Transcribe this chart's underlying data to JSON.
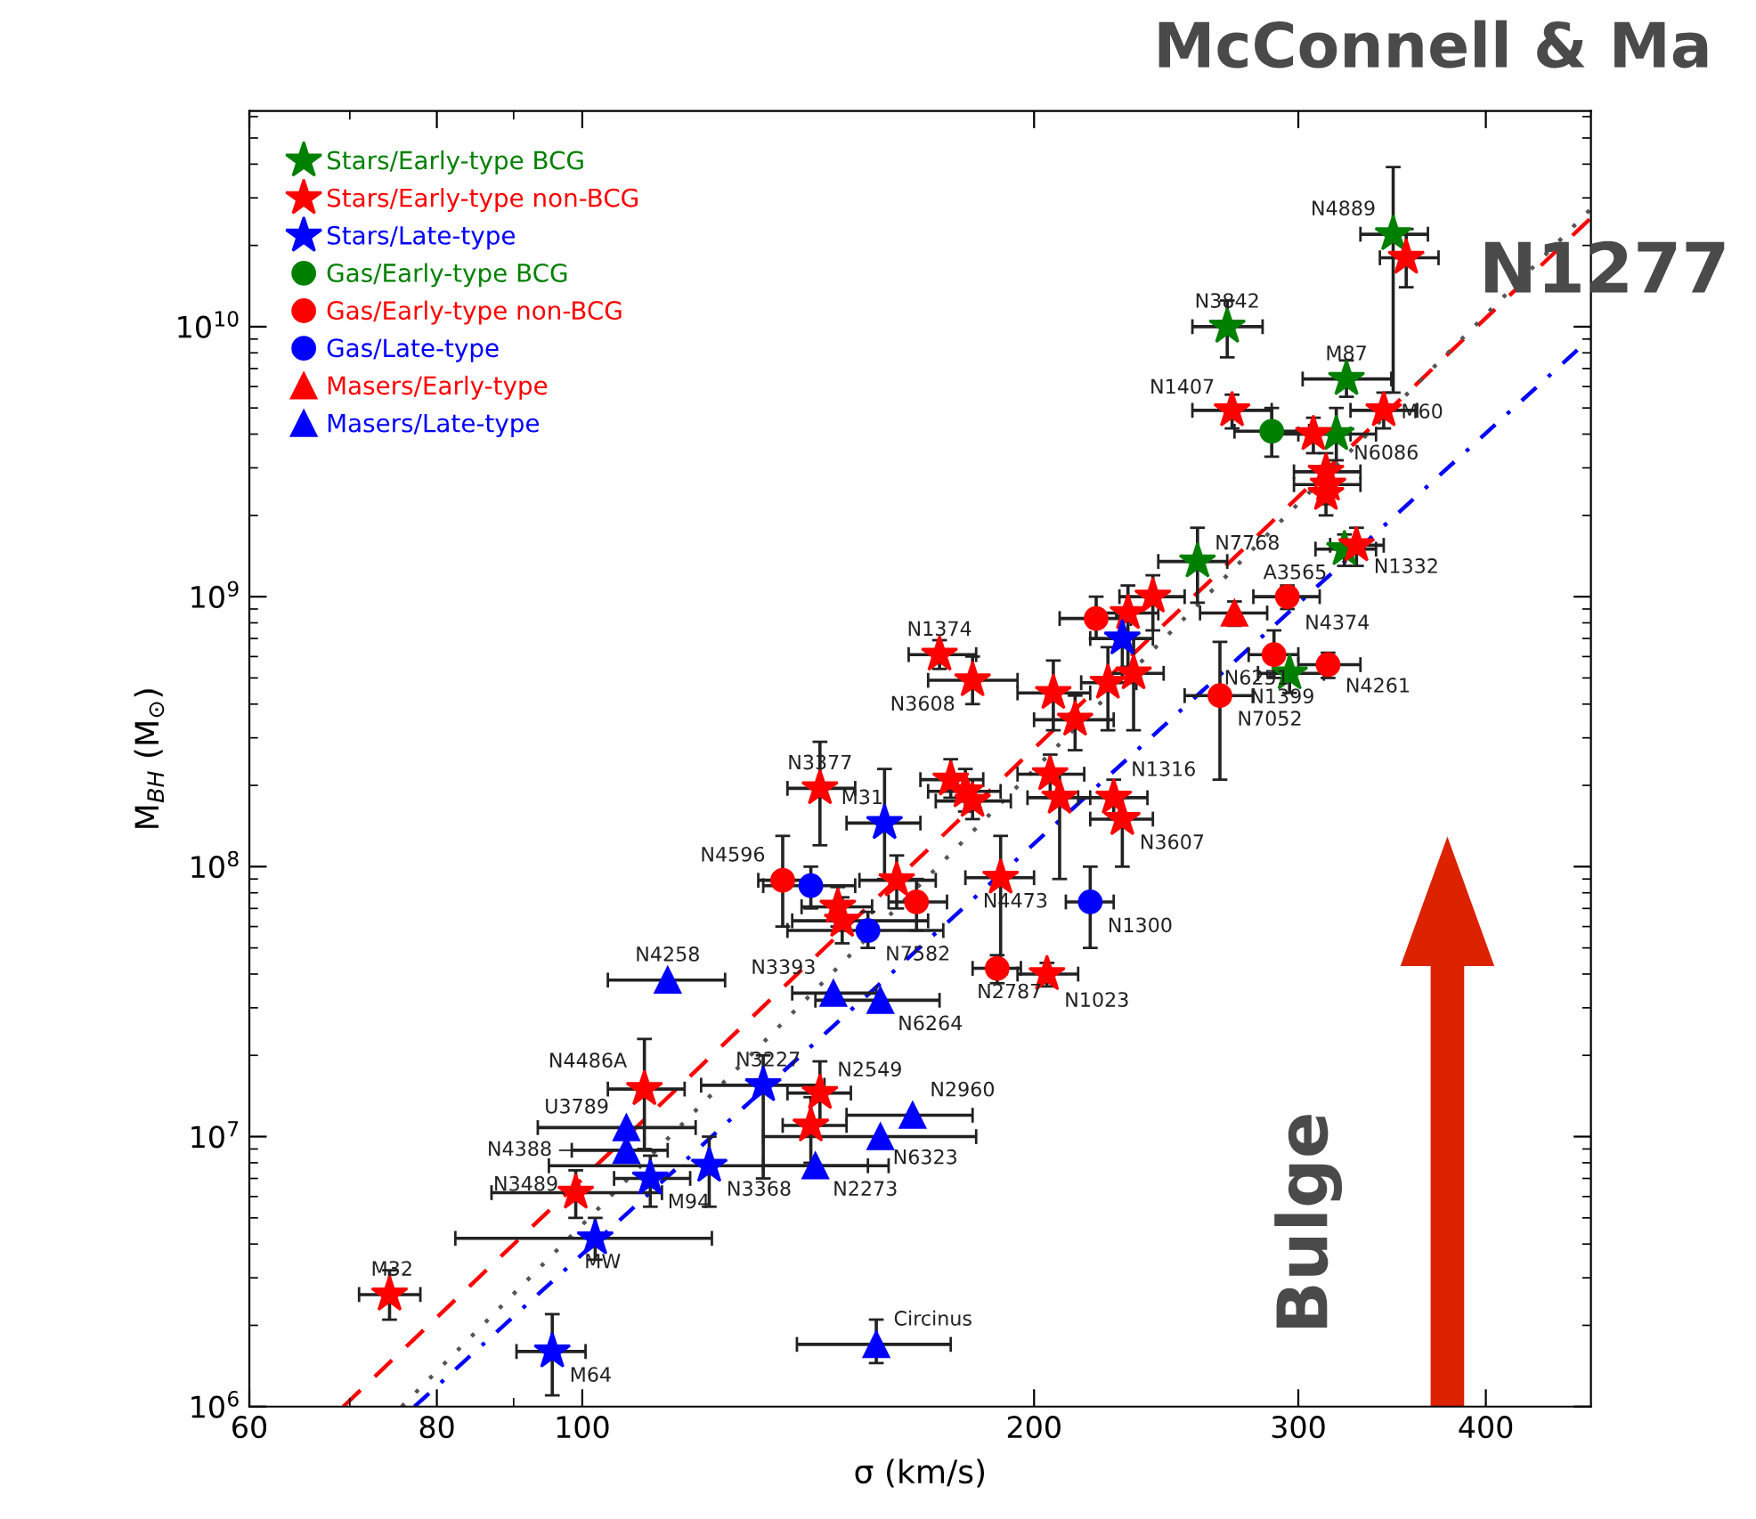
{
  "chart_data": {
    "type": "scatter",
    "title": "McConnell & Ma",
    "xlabel": "σ (km/s)",
    "ylabel": "M$_{BH}$ (M$_{⊙}$)",
    "log": "xy",
    "xlim": [
      60,
      470
    ],
    "ylim": [
      1000000.0,
      63000000000.0
    ],
    "grid": false,
    "legend": "top left",
    "xticks": [
      60,
      80,
      100,
      200,
      300,
      400
    ],
    "yticks": [
      {
        "value": 1000000.0,
        "label": "10$^{6}$"
      },
      {
        "value": 10000000.0,
        "label": "10$^{7}$"
      },
      {
        "value": 100000000.0,
        "label": "10$^{8}$"
      },
      {
        "value": 1000000000.0,
        "label": "10$^{9}$"
      },
      {
        "value": 10000000000.0,
        "label": "10$^{10}$"
      }
    ],
    "series": [
      {
        "name": "Stars/Early-type BCG",
        "color": "#008000",
        "marker": "star",
        "x": [
          347,
          269,
          323,
          318,
          257,
          322,
          296
        ],
        "values": [
          22000000000.0,
          10000000000.0,
          6400000000.0,
          4000000000.0,
          1350000000.0,
          1500000000.0,
          520000000.0
        ],
        "xerrors": [
          [
            330,
            366
          ],
          [
            255,
            284
          ],
          [
            302,
            346
          ],
          [
            300,
            338
          ],
          [
            242,
            269
          ],
          [
            308,
            338
          ],
          [
            282,
            312
          ]
        ],
        "errors": [
          [
            5700000000.0,
            39000000000.0
          ],
          [
            7700000000.0,
            12500000000.0
          ],
          [
            5500000000.0,
            7500000000.0
          ],
          [
            3200000000.0,
            5000000000.0
          ],
          [
            950000000.0,
            1800000000.0
          ],
          [
            1300000000.0,
            1700000000.0
          ],
          [
            440000000.0,
            610000000.0
          ]
        ]
      },
      {
        "name": "Stars/Early-type non-BCG",
        "color": "#ff0000",
        "marker": "star",
        "x": [
          354,
          271,
          342,
          307,
          313,
          314,
          313,
          328,
          231,
          240,
          173,
          182,
          206,
          213,
          224,
          233,
          144,
          176,
          180,
          182,
          205,
          208,
          226,
          229,
          162,
          190,
          148,
          149,
          204,
          110,
          144,
          142,
          99,
          74.4
        ],
        "values": [
          18000000000.0,
          4900000000.0,
          4900000000.0,
          4000000000.0,
          2900000000.0,
          2600000000.0,
          2400000000.0,
          1550000000.0,
          870000000.0,
          1000000000.0,
          610000000.0,
          490000000.0,
          440000000.0,
          350000000.0,
          480000000.0,
          520000000.0,
          195000000.0,
          210000000.0,
          190000000.0,
          175000000.0,
          220000000.0,
          180000000.0,
          180000000.0,
          150000000.0,
          89000000.0,
          91000000.0,
          71000000.0,
          63000000.0,
          40000000.0,
          15000000.0,
          14500000.0,
          11000000.0,
          6200000.0,
          2600000.0
        ],
        "xerrors": [
          [
            340,
            372
          ],
          [
            255,
            288
          ],
          [
            325,
            360
          ],
          [
            290,
            325
          ],
          [
            298,
            330
          ],
          [
            298,
            330
          ],
          null,
          [
            315,
            342
          ],
          [
            220,
            242
          ],
          [
            228,
            252
          ],
          [
            165,
            183
          ],
          [
            170,
            195
          ],
          [
            195,
            218
          ],
          [
            200,
            226
          ],
          [
            215,
            234
          ],
          [
            224,
            244
          ],
          [
            137,
            152
          ],
          [
            168,
            185
          ],
          [
            170,
            190
          ],
          [
            172,
            193
          ],
          [
            195,
            216
          ],
          [
            198,
            218
          ],
          [
            214,
            238
          ],
          [
            218,
            240
          ],
          [
            153,
            172
          ],
          [
            180,
            200
          ],
          [
            140,
            156
          ],
          [
            138,
            170
          ],
          [
            195,
            214
          ],
          [
            104,
            117
          ],
          [
            137,
            151
          ],
          [
            136,
            150
          ],
          [
            87,
            113
          ],
          [
            71,
            78
          ]
        ],
        "errors": [
          [
            14000000000.0,
            23000000000.0
          ],
          [
            4200000000.0,
            5600000000.0
          ],
          [
            4200000000.0,
            5700000000.0
          ],
          [
            3400000000.0,
            4600000000.0
          ],
          [
            2900000000.0,
            3400000000.0
          ],
          [
            2200000000.0,
            3000000000.0
          ],
          [
            2000000000.0,
            2400000000.0
          ],
          [
            1300000000.0,
            1800000000.0
          ],
          [
            550000000.0,
            1100000000.0
          ],
          [
            750000000.0,
            1200000000.0
          ],
          [
            540000000.0,
            690000000.0
          ],
          [
            400000000.0,
            600000000.0
          ],
          [
            320000000.0,
            580000000.0
          ],
          [
            270000000.0,
            430000000.0
          ],
          [
            320000000.0,
            650000000.0
          ],
          [
            320000000.0,
            700000000.0
          ],
          [
            120000000.0,
            290000000.0
          ],
          [
            180000000.0,
            250000000.0
          ],
          [
            160000000.0,
            230000000.0
          ],
          [
            150000000.0,
            210000000.0
          ],
          [
            180000000.0,
            260000000.0
          ],
          [
            90000000.0,
            220000000.0
          ],
          [
            150000000.0,
            210000000.0
          ],
          [
            100000000.0,
            180000000.0
          ],
          [
            70000000.0,
            110000000.0
          ],
          [
            40000000.0,
            130000000.0
          ],
          [
            60000000.0,
            84000000.0
          ],
          [
            52000000.0,
            77000000.0
          ],
          [
            36000000.0,
            44000000.0
          ],
          [
            9000000.0,
            23000000.0
          ],
          [
            11000000.0,
            19000000.0
          ],
          [
            8000000.0,
            14000000.0
          ],
          [
            5000000.0,
            7500000.0
          ],
          [
            2100000.0,
            3200000.0
          ]
        ]
      },
      {
        "name": "Stars/Late-type",
        "color": "#0000ff",
        "marker": "star",
        "x": [
          229,
          159,
          132,
          121.5,
          111,
          102,
          95.5
        ],
        "values": [
          700000000.0,
          145000000.0,
          15500000.0,
          7800000.0,
          7000000.0,
          4200000.0,
          1600000.0
        ],
        "xerrors": [
          [
            218,
            240
          ],
          [
            150,
            168
          ],
          [
            120,
            145
          ],
          [
            95,
            160
          ],
          [
            105,
            118
          ],
          [
            82.3,
            122
          ],
          [
            90.4,
            100.5
          ]
        ],
        "errors": [
          [
            500000000.0,
            850000000.0
          ],
          [
            90000000.0,
            230000000.0
          ],
          [
            7000000.0,
            20000000.0
          ],
          [
            5500000.0,
            10000000.0
          ],
          [
            5500000.0,
            8500000.0
          ],
          [
            3500000.0,
            5000000.0
          ],
          [
            1100000.0,
            2200000.0
          ]
        ]
      },
      {
        "name": "Gas/Early-type BCG",
        "color": "#008000",
        "marker": "circle",
        "x": [
          288
        ],
        "values": [
          4100000000.0
        ],
        "xerrors": [
          [
            272,
            305
          ]
        ],
        "errors": [
          [
            3300000000.0,
            5000000000.0
          ]
        ]
      },
      {
        "name": "Gas/Early-type non-BCG",
        "color": "#ff0000",
        "marker": "circle",
        "x": [
          295,
          220,
          289,
          314,
          266,
          136,
          167,
          189
        ],
        "values": [
          1000000000.0,
          830000000.0,
          610000000.0,
          560000000.0,
          430000000.0,
          89000000.0,
          74000000.0,
          42000000.0
        ],
        "xerrors": [
          [
            280,
            310
          ],
          [
            208,
            232
          ],
          [
            278,
            300
          ],
          [
            300,
            330
          ],
          [
            252,
            280
          ],
          [
            131,
            142
          ],
          [
            160,
            175
          ],
          [
            182,
            196
          ]
        ],
        "errors": [
          [
            900000000.0,
            1100000000.0
          ],
          [
            700000000.0,
            1000000000.0
          ],
          [
            500000000.0,
            750000000.0
          ],
          [
            500000000.0,
            620000000.0
          ],
          [
            210000000.0,
            680000000.0
          ],
          [
            60000000.0,
            130000000.0
          ],
          [
            58000000.0,
            90000000.0
          ],
          [
            37000000.0,
            47000000.0
          ]
        ]
      },
      {
        "name": "Gas/Late-type",
        "color": "#0000ff",
        "marker": "circle",
        "x": [
          142,
          155,
          218
        ],
        "values": [
          85000000.0,
          58000000.0,
          74000000.0
        ],
        "xerrors": [
          [
            132,
            152
          ],
          [
            137,
            174
          ],
          [
            210,
            226
          ]
        ],
        "errors": [
          [
            70000000.0,
            100000000.0
          ],
          [
            50000000.0,
            68000000.0
          ],
          [
            50000000.0,
            100000000.0
          ]
        ]
      },
      {
        "name": "Masers/Early-type",
        "color": "#ff0000",
        "marker": "triangle",
        "x": [
          272
        ],
        "values": [
          870000000.0
        ],
        "xerrors": [
          [
            258,
            286
          ]
        ],
        "errors": [
          [
            780000000.0,
            960000000.0
          ]
        ]
      },
      {
        "name": "Masers/Late-type",
        "color": "#0000ff",
        "marker": "triangle",
        "x": [
          114,
          147,
          158,
          166,
          107,
          158,
          107,
          143,
          157
        ],
        "values": [
          38000000.0,
          34000000.0,
          32000000.0,
          12000000.0,
          10800000.0,
          10000000.0,
          8900000.0,
          7800000.0,
          1700000.0
        ],
        "xerrors": [
          [
            104,
            124.5
          ],
          [
            138,
            157
          ],
          [
            143,
            173
          ],
          [
            150,
            182
          ],
          [
            93.4,
            119
          ],
          [
            132,
            183
          ],
          [
            98.4,
            114
          ],
          [
            132,
            155
          ],
          [
            139,
            176
          ]
        ],
        "errors": [
          null,
          null,
          null,
          null,
          null,
          null,
          null,
          null,
          [
            1450000.0,
            2100000.0
          ]
        ]
      },
      {
        "type": "line",
        "color": "#ff0000",
        "line_style": "dashed",
        "x": [
          69.3,
          469
        ],
        "values": [
          1000000.0,
          25000000000.0
        ]
      },
      {
        "type": "line",
        "color": "#555555",
        "line_style": "dotted",
        "x": [
          75.8,
          469
        ],
        "values": [
          1000000.0,
          27000000000.0
        ]
      },
      {
        "type": "line",
        "color": "#0000ff",
        "line_style": "dashdot",
        "x": [
          77.3,
          469
        ],
        "values": [
          1000000.0,
          9000000000.0
        ]
      }
    ],
    "annotations": [
      {
        "text": "N4889",
        "x": 347,
        "y": 22000000000.0
      },
      {
        "text": "N3842",
        "x": 269,
        "y": 10000000000.0
      },
      {
        "text": "M87",
        "x": 323,
        "y": 6400000000.0
      },
      {
        "text": "N1407",
        "x": 271,
        "y": 4900000000.0
      },
      {
        "text": "M60",
        "x": 342,
        "y": 4900000000.0
      },
      {
        "text": "N6086",
        "x": 318,
        "y": 4000000000.0
      },
      {
        "text": "N7768",
        "x": 257,
        "y": 1350000000.0
      },
      {
        "text": "N1332",
        "x": 328,
        "y": 1550000000.0
      },
      {
        "text": "A3565",
        "x": 322,
        "y": 1500000000.0
      },
      {
        "text": "N4374",
        "x": 295,
        "y": 1000000000.0
      },
      {
        "text": "N1374",
        "x": 173,
        "y": 610000000.0
      },
      {
        "text": "N3608",
        "x": 182,
        "y": 490000000.0
      },
      {
        "text": "N4261",
        "x": 314,
        "y": 560000000.0
      },
      {
        "text": "N1399",
        "x": 296,
        "y": 520000000.0
      },
      {
        "text": "N6251",
        "x": 289,
        "y": 610000000.0
      },
      {
        "text": "N7052",
        "x": 266,
        "y": 430000000.0
      },
      {
        "text": "N3377",
        "x": 144,
        "y": 195000000.0
      },
      {
        "text": "M31",
        "x": 159,
        "y": 145000000.0
      },
      {
        "text": "N1316",
        "x": 226,
        "y": 180000000.0
      },
      {
        "text": "N3607",
        "x": 229,
        "y": 150000000.0
      },
      {
        "text": "N4596",
        "x": 136,
        "y": 89000000.0
      },
      {
        "text": "N4473",
        "x": 190,
        "y": 91000000.0
      },
      {
        "text": "N7582",
        "x": 155,
        "y": 58000000.0
      },
      {
        "text": "N1300",
        "x": 218,
        "y": 74000000.0
      },
      {
        "text": "N4258",
        "x": 114,
        "y": 38000000.0
      },
      {
        "text": "N3393",
        "x": 147,
        "y": 34000000.0
      },
      {
        "text": "N6264",
        "x": 158,
        "y": 32000000.0
      },
      {
        "text": "N2787",
        "x": 189,
        "y": 42000000.0
      },
      {
        "text": "N1023",
        "x": 204,
        "y": 40000000.0
      },
      {
        "text": "N3227",
        "x": 132,
        "y": 15500000.0
      },
      {
        "text": "N2549",
        "x": 144,
        "y": 14500000.0
      },
      {
        "text": "N4486A",
        "x": 110,
        "y": 15000000.0
      },
      {
        "text": "N2960",
        "x": 166,
        "y": 12000000.0
      },
      {
        "text": "U3789",
        "x": 107,
        "y": 10800000.0
      },
      {
        "text": "N6323",
        "x": 158,
        "y": 10000000.0
      },
      {
        "text": "N4388",
        "x": 107,
        "y": 8900000.0
      },
      {
        "text": "N3368",
        "x": 121.5,
        "y": 7800000.0
      },
      {
        "text": "N2273",
        "x": 143,
        "y": 7800000.0
      },
      {
        "text": "M94",
        "x": 111,
        "y": 7000000.0
      },
      {
        "text": "N3489",
        "x": 99,
        "y": 6200000.0
      },
      {
        "text": "MW",
        "x": 102,
        "y": 4200000.0
      },
      {
        "text": "M32",
        "x": 74.4,
        "y": 2600000.0
      },
      {
        "text": "M64",
        "x": 95.5,
        "y": 1600000.0
      },
      {
        "text": "Circinus",
        "x": 157,
        "y": 1700000.0
      },
      "N1277",
      "Bulge"
    ]
  }
}
